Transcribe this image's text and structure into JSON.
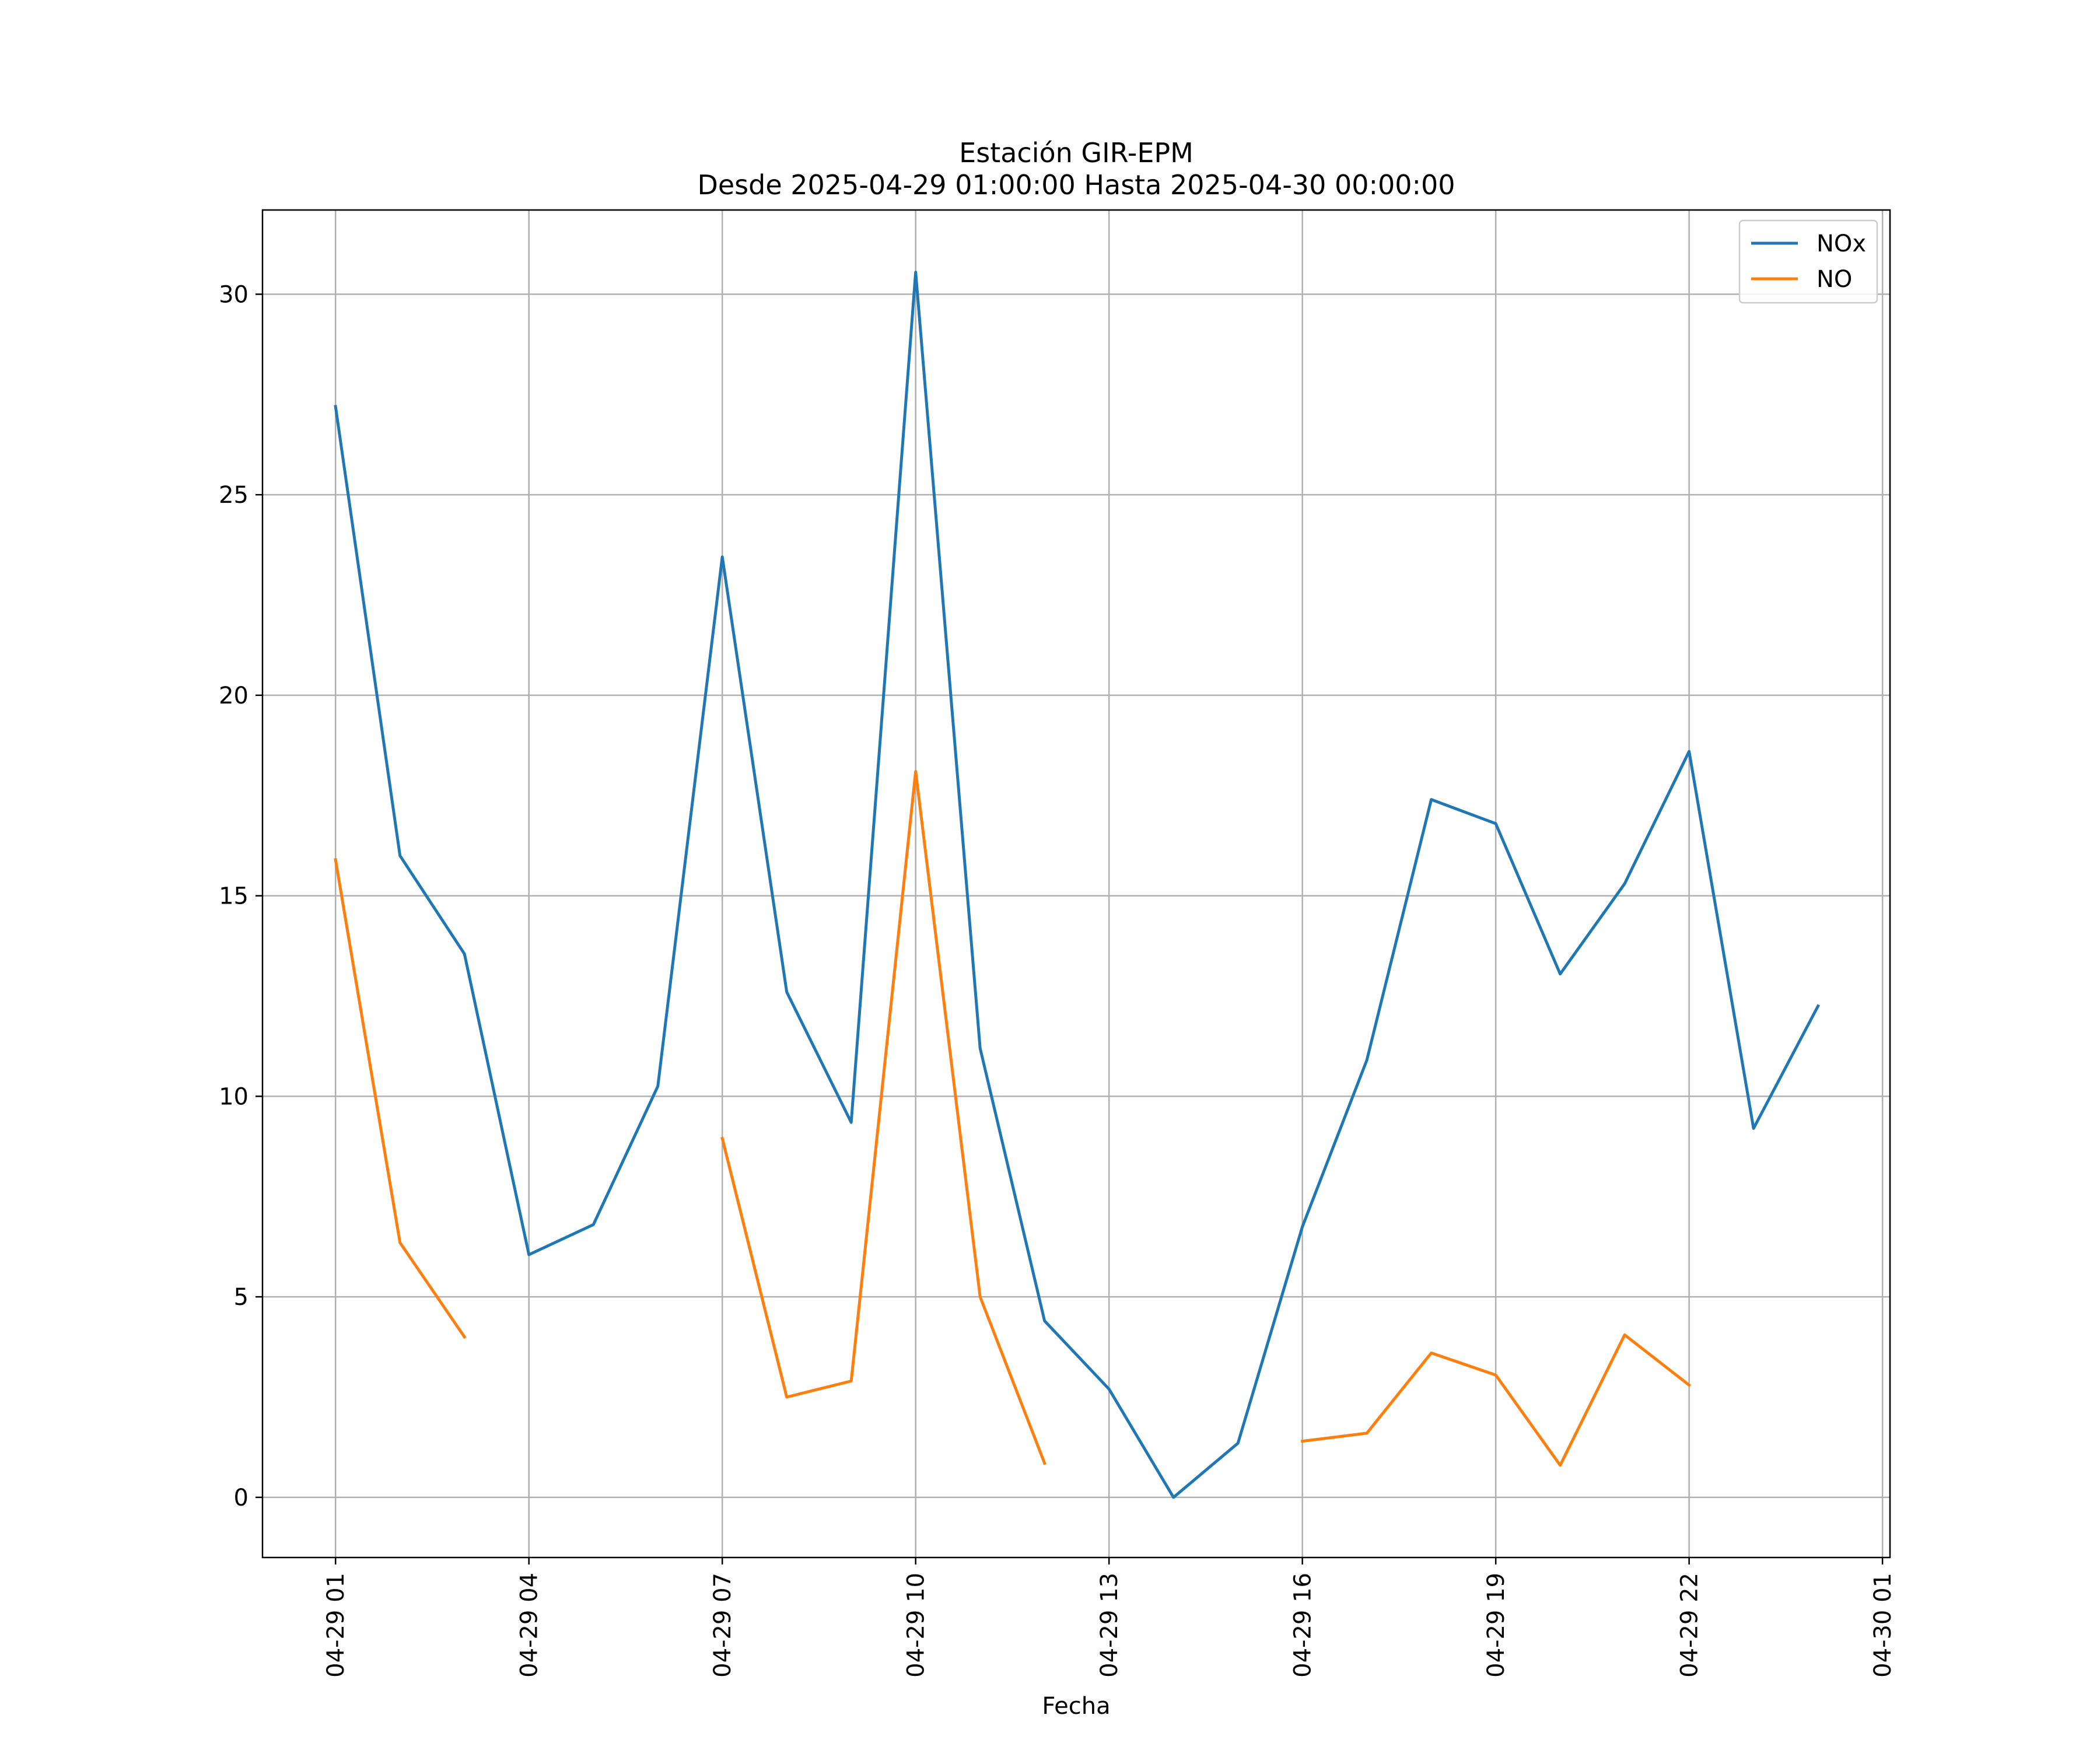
{
  "chart_data": {
    "type": "line",
    "title": "Estación GIR-EPM",
    "subtitle": "Desde 2025-04-29 01:00:00 Hasta 2025-04-30 00:00:00",
    "xlabel": "Fecha",
    "ylabel": "",
    "xlim": [
      "2025-04-28 23:52",
      "2025-04-30 01:07"
    ],
    "ylim": [
      -1.5,
      32.1
    ],
    "grid": true,
    "legend_position": "top-right",
    "x_ticks": [
      "04-29 01",
      "04-29 04",
      "04-29 07",
      "04-29 10",
      "04-29 13",
      "04-29 16",
      "04-29 19",
      "04-29 22",
      "04-30 01"
    ],
    "y_ticks": [
      0,
      5,
      10,
      15,
      20,
      25,
      30
    ],
    "x": [
      "2025-04-29 01:00",
      "2025-04-29 02:00",
      "2025-04-29 03:00",
      "2025-04-29 04:00",
      "2025-04-29 05:00",
      "2025-04-29 06:00",
      "2025-04-29 07:00",
      "2025-04-29 08:00",
      "2025-04-29 09:00",
      "2025-04-29 10:00",
      "2025-04-29 11:00",
      "2025-04-29 12:00",
      "2025-04-29 13:00",
      "2025-04-29 14:00",
      "2025-04-29 15:00",
      "2025-04-29 16:00",
      "2025-04-29 17:00",
      "2025-04-29 18:00",
      "2025-04-29 19:00",
      "2025-04-29 20:00",
      "2025-04-29 21:00",
      "2025-04-29 22:00",
      "2025-04-29 23:00",
      "2025-04-30 00:00"
    ],
    "series": [
      {
        "name": "NOx",
        "color": "#1f77b4",
        "values": [
          27.2,
          16.0,
          13.55,
          6.05,
          6.8,
          10.25,
          23.45,
          12.6,
          9.35,
          30.55,
          11.2,
          4.4,
          2.7,
          0.0,
          1.35,
          6.75,
          10.9,
          17.4,
          16.8,
          13.05,
          15.3,
          18.6,
          9.2,
          12.25
        ]
      },
      {
        "name": "NO",
        "color": "#ff7f0e",
        "values": [
          15.9,
          6.35,
          4.0,
          null,
          null,
          null,
          8.95,
          2.5,
          2.9,
          18.1,
          5.0,
          0.85,
          null,
          null,
          null,
          1.4,
          1.6,
          3.6,
          3.05,
          0.8,
          4.05,
          2.8,
          null,
          null
        ]
      }
    ]
  }
}
